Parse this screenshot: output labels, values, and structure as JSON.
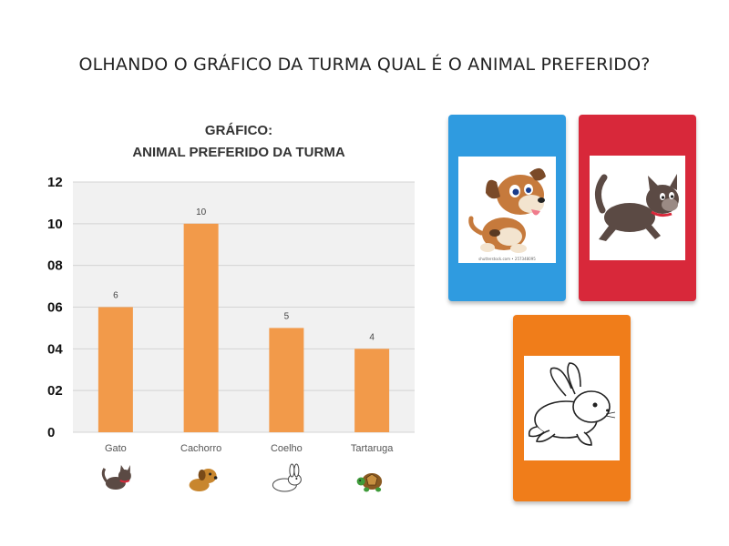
{
  "question": "OLHANDO O GRÁFICO DA TURMA QUAL É O ANIMAL PREFERIDO?",
  "chart_data": {
    "type": "bar",
    "title_lines": [
      "GRÁFICO:",
      "ANIMAL PREFERIDO DA TURMA"
    ],
    "categories": [
      "Gato",
      "Cachorro",
      "Coelho",
      "Tartaruga"
    ],
    "values": [
      6,
      10,
      5,
      4
    ],
    "data_labels": [
      "6",
      "10",
      "5",
      "4"
    ],
    "y_ticks": [
      "0",
      "02",
      "04",
      "06",
      "08",
      "10",
      "12"
    ],
    "ylim": [
      0,
      12
    ],
    "grid": true,
    "bar_color": "#f29a4a",
    "category_icons": [
      "cat-icon",
      "dog-icon",
      "rabbit-icon",
      "turtle-icon"
    ]
  },
  "answer_cards": [
    {
      "animal": "dog",
      "color": "#2f9be0",
      "caption": "shutterstock.com • 257348095"
    },
    {
      "animal": "cat",
      "color": "#d8283a"
    },
    {
      "animal": "rabbit",
      "color": "#f07d1a"
    }
  ]
}
